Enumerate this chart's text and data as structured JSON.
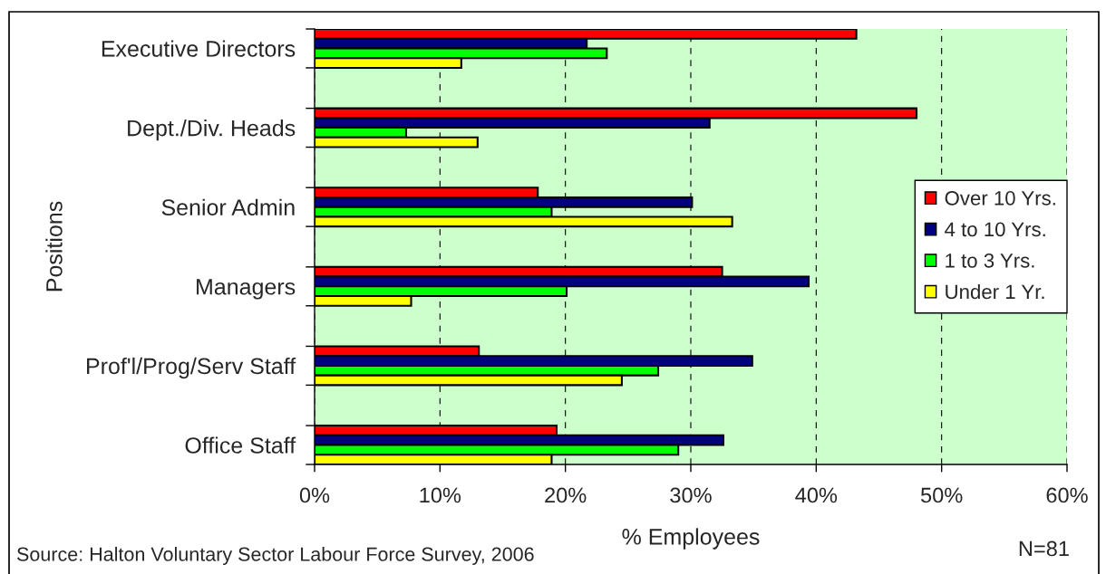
{
  "chart_data": {
    "type": "bar",
    "orientation": "horizontal",
    "categories": [
      "Executive Directors",
      "Dept./Div. Heads",
      "Senior Admin",
      "Managers",
      "Prof'l/Prog/Serv Staff",
      "Office Staff"
    ],
    "series": [
      {
        "name": "Over 10 Yrs.",
        "color": "#ff0000",
        "values": [
          43.2,
          48.0,
          17.8,
          32.5,
          13.1,
          19.3
        ]
      },
      {
        "name": "4 to 10 Yrs.",
        "color": "#000080",
        "values": [
          21.7,
          31.5,
          30.1,
          39.4,
          34.9,
          32.6
        ]
      },
      {
        "name": "1 to 3 Yrs.",
        "color": "#00ff00",
        "values": [
          23.3,
          7.3,
          18.9,
          20.1,
          27.4,
          29.0
        ]
      },
      {
        "name": "Under 1 Yr.",
        "color": "#ffff00",
        "values": [
          11.7,
          13.0,
          33.3,
          7.7,
          24.5,
          18.9
        ]
      }
    ],
    "xlim": [
      0,
      60
    ],
    "xticks": [
      {
        "value": 0,
        "label": "0%"
      },
      {
        "value": 10,
        "label": "10%"
      },
      {
        "value": 20,
        "label": "20%"
      },
      {
        "value": 30,
        "label": "30%"
      },
      {
        "value": 40,
        "label": "40%"
      },
      {
        "value": 50,
        "label": "50%"
      },
      {
        "value": 60,
        "label": "60%"
      }
    ],
    "xlabel": "% Employees",
    "ylabel": "Positions",
    "grid": "x",
    "legend": "right",
    "annotations": [
      "Source: Halton Voluntary Sector Labour Force Survey, 2006",
      "N=81"
    ]
  }
}
